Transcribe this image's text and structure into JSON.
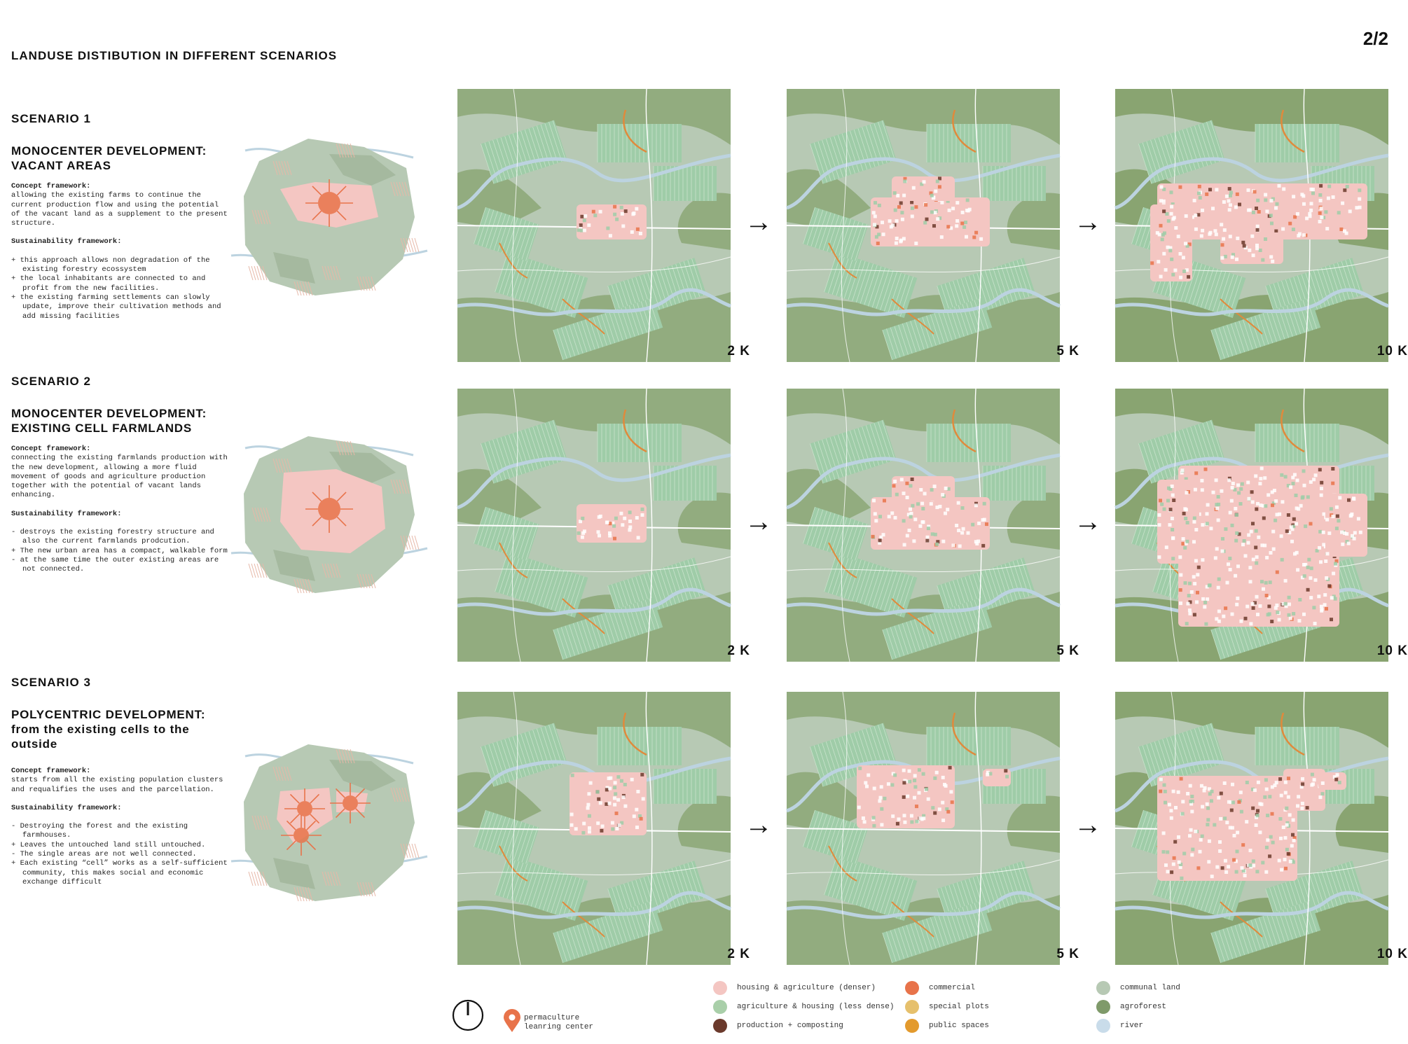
{
  "page": {
    "title": "LANDUSE DISTIBUTION IN DIFFERENT SCENARIOS",
    "number": "2/2"
  },
  "scenarios": [
    {
      "label": "SCENARIO 1",
      "title": "MONOCENTER DEVELOPMENT: VACANT AREAS",
      "concept_heading": "Concept framework:",
      "concept_text": "allowing the existing farms to continue the current production flow and using the potential of the vacant land as a supplement to the present structure.",
      "sustain_heading": "Sustainability framework:",
      "points": [
        "+ this approach allows non degradation of the existing forestry ecossystem",
        "+ the local inhabitants are connected to and profit from the new facilities.",
        "+ the existing farming settlements can slowly update, improve their cultivation methods and add missing facilities"
      ],
      "maps": [
        "2 K",
        "5 K",
        "10 K"
      ]
    },
    {
      "label": "SCENARIO 2",
      "title": "MONOCENTER DEVELOPMENT: EXISTING CELL FARMLANDS",
      "concept_heading": "Concept framework:",
      "concept_text": "connecting the existing farmlands production with the new development, allowing a more fluid movement of goods and agriculture production together with the potential of vacant lands enhancing.",
      "sustain_heading": "Sustainability framework:",
      "points": [
        "- destroys the existing forestry structure and also the current farmlands prodcution.",
        "+ The new urban area has a compact, walkable form",
        "- at the same time the outer existing areas are not connected."
      ],
      "maps": [
        "2 K",
        "5 K",
        "10 K"
      ]
    },
    {
      "label": "SCENARIO 3",
      "title": "POLYCENTRIC DEVELOPMENT: from the existing cells to the outside",
      "concept_heading": "Concept framework:",
      "concept_text": "starts from all the existing population clusters and requalifies the uses and the parcellation.",
      "sustain_heading": "Sustainability framework:",
      "points": [
        "- Destroying the forest and the existing farmhouses.",
        "+ Leaves the untouched land still untouched.",
        "- The single areas are not well connected.",
        "+ Each existing “cell” works as a self-sufficient community, this makes social and economic exchange difficult"
      ],
      "maps": [
        "2 K",
        "5 K",
        "10 K"
      ]
    }
  ],
  "arrow_glyph": "→",
  "legend": {
    "pin_label": "permaculture leanring center",
    "items": [
      {
        "label": "housing & agriculture (denser)",
        "color": "#f4c6c2"
      },
      {
        "label": "agriculture & housing (less dense)",
        "color": "#a9cfa9"
      },
      {
        "label": "production + composting",
        "color": "#6b3a2c"
      },
      {
        "label": "commercial",
        "color": "#e8734a"
      },
      {
        "label": "special plots",
        "color": "#e6c06c"
      },
      {
        "label": "public spaces",
        "color": "#e39a2d"
      },
      {
        "label": "communal land",
        "color": "#b7c9b4"
      },
      {
        "label": "agroforest",
        "color": "#7f9a6a"
      },
      {
        "label": "river",
        "color": "#c9dcea"
      }
    ]
  },
  "colors": {
    "communal": "#b7c9b4",
    "agroforest": "#86a26e",
    "agri": "#9fcca8",
    "dense": "#f4c6c2",
    "commercial": "#e8734a",
    "river": "#bcd3e0"
  }
}
